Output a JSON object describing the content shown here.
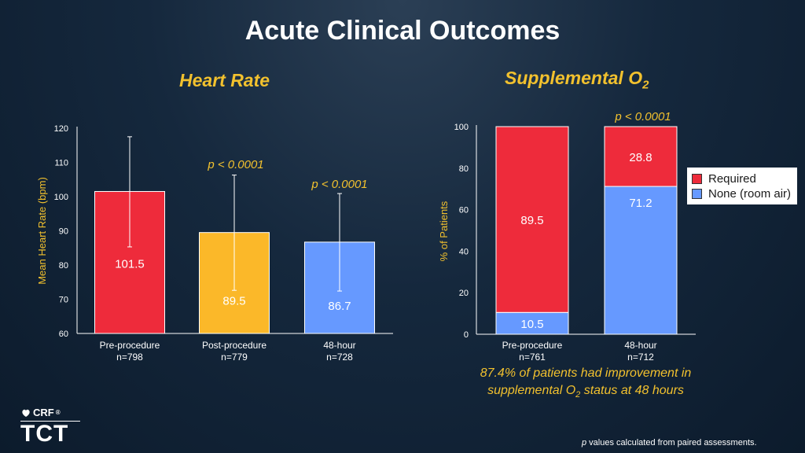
{
  "title": "Acute Clinical Outcomes",
  "colors": {
    "accent": "#f2c12e",
    "red": "#ee2b3b",
    "yellow": "#fbb829",
    "blue": "#6699ff",
    "axis": "#ffffff"
  },
  "chart_data": [
    {
      "type": "bar",
      "title": "Heart Rate",
      "ylabel": "Mean Heart Rate (bpm)",
      "xlabel": "",
      "ylim": [
        60,
        120
      ],
      "yticks": [
        "60",
        "70",
        "80",
        "90",
        "100",
        "110",
        "120"
      ],
      "categories": [
        "Pre-procedure",
        "Post-procedure",
        "48-hour"
      ],
      "n_labels": [
        "n=798",
        "n=779",
        "n=728"
      ],
      "values": [
        101.5,
        89.5,
        86.7
      ],
      "value_labels": [
        "101.5",
        "89.5",
        "86.7"
      ],
      "error_upper": [
        117.5,
        106.3,
        100.9
      ],
      "error_lower": [
        85.3,
        72.6,
        72.4
      ],
      "annotations": [
        "p < 0.0001",
        "p < 0.0001"
      ]
    },
    {
      "type": "bar",
      "stacked": true,
      "title": "Supplemental O",
      "title_sub": "2",
      "ylabel": "% of Patients",
      "xlabel": "",
      "ylim": [
        0,
        100
      ],
      "yticks": [
        "0",
        "20",
        "40",
        "60",
        "80",
        "100"
      ],
      "categories": [
        "Pre-procedure",
        "48-hour"
      ],
      "n_labels": [
        "n=761",
        "n=712"
      ],
      "series": [
        {
          "name": "None (room air)",
          "values": [
            10.5,
            71.2
          ],
          "labels": [
            "10.5",
            "71.2"
          ]
        },
        {
          "name": "Required",
          "values": [
            89.5,
            28.8
          ],
          "labels": [
            "89.5",
            "28.8"
          ]
        }
      ],
      "legend": [
        "Required",
        "None (room air)"
      ],
      "legend_position": "right",
      "annotation": "p < 0.0001"
    }
  ],
  "note": {
    "line1": "87.4% of patients had improvement in",
    "line2_pre": "supplemental O",
    "line2_sub": "2",
    "line2_post": " status at 48 hours"
  },
  "footnote": {
    "italic": "p",
    "rest": " values calculated from paired assessments."
  },
  "logo": {
    "crf": "CRF",
    "tct": "TCT",
    "crf_mark": "®"
  }
}
